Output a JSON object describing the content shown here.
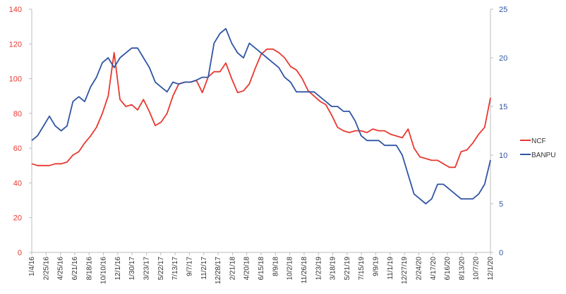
{
  "colors": {
    "ncf": "#e8382f",
    "banpu": "#2f55a4",
    "left_axis": "#e8382f",
    "right_axis": "#2f55a4",
    "x_tick": "#333333",
    "axis_line": "#bdbdbd"
  },
  "chart_data": {
    "type": "line",
    "title": "",
    "xlabel": "",
    "grid": false,
    "legend_position": "right",
    "x_tick_labels": [
      "1/4/16",
      "2/25/16",
      "4/25/16",
      "6/21/16",
      "8/18/16",
      "10/10/16",
      "12/1/16",
      "1/30/17",
      "3/23/17",
      "5/22/17",
      "7/13/17",
      "9/7/17",
      "11/2/17",
      "12/28/17",
      "2/21/18",
      "4/20/18",
      "6/15/18",
      "8/9/18",
      "10/2/18",
      "11/26/18",
      "1/23/19",
      "3/18/19",
      "5/21/19",
      "7/15/19",
      "9/9/19",
      "11/1/19",
      "12/27/19",
      "2/24/20",
      "4/17/20",
      "6/16/20",
      "8/13/20",
      "10/7/20",
      "12/1/20"
    ],
    "left_axis": {
      "ticks": [
        0,
        20,
        40,
        60,
        80,
        100,
        120,
        140
      ],
      "range": [
        0,
        140
      ]
    },
    "right_axis": {
      "ticks": [
        0,
        5,
        10,
        15,
        20,
        25
      ],
      "range": [
        0,
        25
      ]
    },
    "series": [
      {
        "name": "NCF",
        "axis": "left",
        "values": [
          51,
          50,
          50,
          50,
          51,
          51,
          52,
          56,
          58,
          63,
          67,
          72,
          80,
          90,
          115,
          88,
          84,
          85,
          82,
          88,
          81,
          73,
          75,
          80,
          90,
          97,
          98,
          98,
          99,
          92,
          101,
          104,
          104,
          109,
          100,
          92,
          93,
          97,
          106,
          114,
          117,
          117,
          115,
          112,
          107,
          105,
          100,
          93,
          90,
          87,
          85,
          79,
          72,
          70,
          69,
          70,
          70,
          69,
          71,
          70,
          70,
          68,
          67,
          66,
          71,
          60,
          55,
          54,
          53,
          53,
          51,
          49,
          49,
          58,
          59,
          63,
          68,
          72,
          89
        ]
      },
      {
        "name": "BANPU",
        "axis": "right",
        "values": [
          11.5,
          12,
          13,
          14,
          13,
          12.5,
          13,
          15.5,
          16,
          15.5,
          17,
          18,
          19.5,
          20,
          19,
          20,
          20.5,
          21,
          21,
          20,
          19,
          17.5,
          17,
          16.5,
          17.5,
          17.3,
          17.5,
          17.5,
          17.7,
          18,
          18,
          21.5,
          22.5,
          23,
          21.5,
          20.5,
          20,
          21.5,
          21,
          20.5,
          20,
          19.5,
          19,
          18,
          17.5,
          16.5,
          16.5,
          16.5,
          16.5,
          16,
          15.5,
          15,
          15,
          14.5,
          14.5,
          13.5,
          12,
          11.5,
          11.5,
          11.5,
          11,
          11,
          11,
          10,
          8,
          6,
          5.5,
          5,
          5.5,
          7,
          7,
          6.5,
          6,
          5.5,
          5.5,
          5.5,
          6,
          7,
          9.5
        ]
      }
    ]
  }
}
